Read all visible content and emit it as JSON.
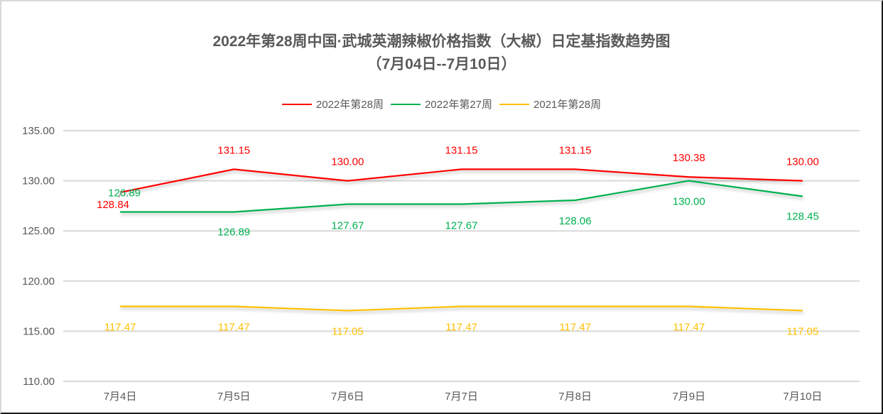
{
  "chart_data": {
    "type": "line",
    "title": "2022年第28周中国·武城英潮辣椒价格指数（大椒）日定基指数趋势图",
    "subtitle": "（7月04日--7月10日）",
    "xlabel": "",
    "ylabel": "",
    "categories": [
      "7月4日",
      "7月5日",
      "7月6日",
      "7月7日",
      "7月8日",
      "7月9日",
      "7月10日"
    ],
    "series": [
      {
        "name": "2022年第28周",
        "color": "#ff0000",
        "values": [
          128.84,
          131.15,
          130.0,
          131.15,
          131.15,
          130.38,
          130.0
        ]
      },
      {
        "name": "2022年第27周",
        "color": "#00b050",
        "values": [
          126.89,
          126.89,
          127.67,
          127.67,
          128.06,
          130.0,
          128.45
        ]
      },
      {
        "name": "2021年第28周",
        "color": "#ffc000",
        "values": [
          117.47,
          117.47,
          117.05,
          117.47,
          117.47,
          117.47,
          117.05
        ]
      }
    ],
    "ylim": [
      110,
      135
    ],
    "yticks": [
      "110.00",
      "115.00",
      "120.00",
      "125.00",
      "130.00",
      "135.00"
    ],
    "grid": true,
    "legend_position": "top",
    "data_labels": true
  },
  "title": {
    "line1": "2022年第28周中国·武城英潮辣椒价格指数（大椒）日定基指数趋势图",
    "line2": "（7月04日--7月10日）"
  },
  "legend": [
    {
      "label": "2022年第28周",
      "color": "#ff0000"
    },
    {
      "label": "2022年第27周",
      "color": "#00b050"
    },
    {
      "label": "2021年第28周",
      "color": "#ffc000"
    }
  ]
}
